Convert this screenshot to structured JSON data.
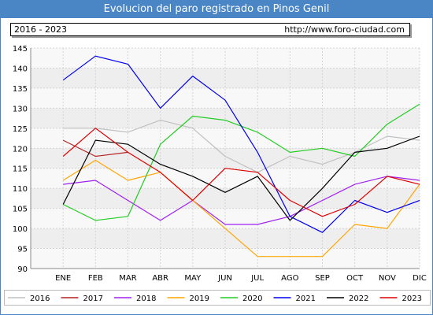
{
  "header": {
    "title": "Evolucion del paro registrado en Pinos Genil",
    "range_label": "2016 - 2023",
    "url": "http://www.foro-ciudad.com"
  },
  "chart_data": {
    "type": "line",
    "title": "Evolucion del paro registrado en Pinos Genil",
    "categories": [
      "ENE",
      "FEB",
      "MAR",
      "ABR",
      "MAY",
      "JUN",
      "JUL",
      "AGO",
      "SEP",
      "OCT",
      "NOV",
      "DIC"
    ],
    "ylim": [
      90,
      145
    ],
    "yticks": [
      90,
      95,
      100,
      105,
      110,
      115,
      120,
      125,
      130,
      135,
      140,
      145
    ],
    "grid": true,
    "legend_position": "bottom",
    "series": [
      {
        "name": "2016",
        "color": "#c0c0c0",
        "values": [
          125,
          125,
          124,
          127,
          125,
          118,
          114,
          118,
          116,
          119,
          123,
          122
        ]
      },
      {
        "name": "2017",
        "color": "#b22222",
        "values": [
          122,
          118,
          119,
          null,
          null,
          null,
          null,
          null,
          null,
          null,
          null,
          null
        ]
      },
      {
        "name": "2018",
        "color": "#a020f0",
        "values": [
          111,
          112,
          107,
          102,
          107,
          101,
          101,
          103,
          107,
          111,
          113,
          112
        ]
      },
      {
        "name": "2019",
        "color": "#ffa500",
        "values": [
          112,
          117,
          112,
          114,
          107,
          100,
          93,
          93,
          93,
          101,
          100,
          111
        ]
      },
      {
        "name": "2020",
        "color": "#22cc22",
        "values": [
          106,
          102,
          103,
          121,
          128,
          127,
          124,
          119,
          120,
          118,
          126,
          131
        ]
      },
      {
        "name": "2021",
        "color": "#0000ee",
        "values": [
          137,
          143,
          141,
          130,
          138,
          132,
          119,
          103,
          99,
          107,
          104,
          107
        ]
      },
      {
        "name": "2022",
        "color": "#000000",
        "values": [
          106,
          122,
          121,
          116,
          113,
          109,
          113,
          102,
          110,
          119,
          120,
          123
        ]
      },
      {
        "name": "2023",
        "color": "#dd0000",
        "values": [
          118,
          125,
          119,
          114,
          107,
          115,
          114,
          107,
          103,
          106,
          113,
          111
        ]
      }
    ]
  }
}
